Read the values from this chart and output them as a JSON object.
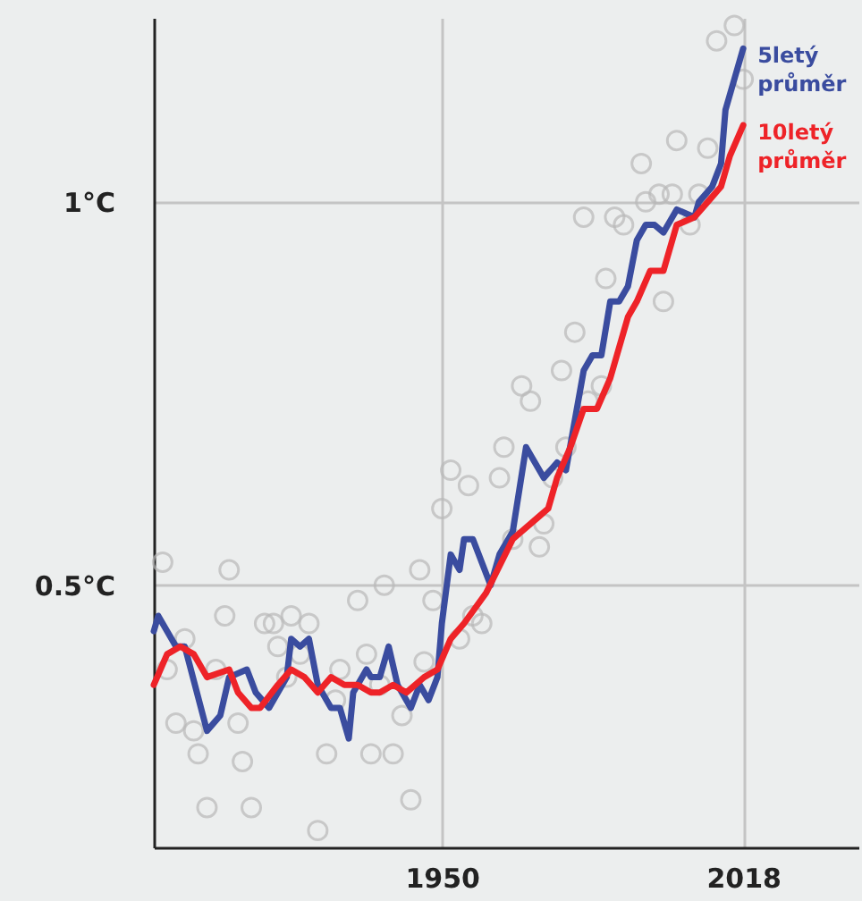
{
  "chart_data": {
    "type": "line",
    "xlim": [
      1885,
      2044
    ],
    "ylim": [
      0.158,
      1.24
    ],
    "xticks": [
      1950,
      2018
    ],
    "yticks": [
      {
        "value": 0.5,
        "label": "0.5°C"
      },
      {
        "value": 1,
        "label": "1°C"
      }
    ],
    "grid": true,
    "legend": false,
    "series": [
      {
        "type": "scatter",
        "marker": "circle",
        "color": "#b9b9b9",
        "x": [
          1887,
          1902,
          1901,
          1892,
          1888,
          1890,
          1894,
          1895,
          1897,
          1899,
          1904,
          1905,
          1907,
          1910,
          1912,
          1913,
          1915,
          1916,
          1918,
          1920,
          1922,
          1924,
          1926,
          1927,
          1931,
          1933,
          1934,
          1936,
          1937,
          1939,
          1941,
          1943,
          1945,
          1946,
          1948,
          1950,
          1952,
          1954,
          1956,
          1957,
          1959,
          1963,
          1964,
          1966,
          1968,
          1970,
          1972,
          1973,
          1975,
          1977,
          1978,
          1980,
          1982,
          1983,
          1986,
          1987,
          1989,
          1991,
          1995,
          1996,
          1999,
          2000,
          2002,
          2003,
          2006,
          2008,
          2010,
          2012,
          2016,
          2018
        ],
        "values": [
          0.53,
          0.52,
          0.46,
          0.43,
          0.39,
          0.32,
          0.31,
          0.28,
          0.21,
          0.39,
          0.32,
          0.27,
          0.21,
          0.45,
          0.45,
          0.42,
          0.38,
          0.46,
          0.41,
          0.45,
          0.18,
          0.28,
          0.35,
          0.39,
          0.48,
          0.41,
          0.28,
          0.37,
          0.5,
          0.28,
          0.33,
          0.22,
          0.52,
          0.4,
          0.48,
          0.6,
          0.65,
          0.43,
          0.63,
          0.46,
          0.45,
          0.64,
          0.68,
          0.56,
          0.76,
          0.74,
          0.55,
          0.58,
          0.64,
          0.78,
          0.68,
          0.83,
          0.98,
          0.74,
          0.76,
          0.9,
          0.98,
          0.97,
          1.05,
          1.0,
          1.01,
          0.87,
          1.01,
          1.08,
          0.97,
          1.01,
          1.07,
          1.21,
          1.23,
          1.16
        ]
      },
      {
        "name": "5letý průměr",
        "color": "#3a4c9f",
        "marker": "none",
        "x": [
          1885,
          1886,
          1890,
          1892,
          1897,
          1900,
          1902,
          1906,
          1908,
          1911,
          1915,
          1916,
          1918,
          1920,
          1922,
          1925,
          1927,
          1929,
          1930,
          1933,
          1934,
          1936,
          1938,
          1940,
          1943,
          1945,
          1947,
          1949,
          1950,
          1952,
          1954,
          1955,
          1957,
          1961,
          1963,
          1966,
          1969,
          1973,
          1976,
          1978,
          1982,
          1984,
          1986,
          1988,
          1990,
          1992,
          1994,
          1996,
          1998,
          2000,
          2003,
          2007,
          2008,
          2011,
          2013,
          2014,
          2016,
          2018
        ],
        "values": [
          0.44,
          0.46,
          0.42,
          0.42,
          0.31,
          0.33,
          0.38,
          0.39,
          0.36,
          0.34,
          0.38,
          0.43,
          0.42,
          0.43,
          0.37,
          0.34,
          0.34,
          0.3,
          0.36,
          0.39,
          0.38,
          0.38,
          0.42,
          0.37,
          0.34,
          0.37,
          0.35,
          0.38,
          0.45,
          0.54,
          0.52,
          0.56,
          0.56,
          0.5,
          0.54,
          0.57,
          0.68,
          0.64,
          0.66,
          0.65,
          0.78,
          0.8,
          0.8,
          0.87,
          0.87,
          0.89,
          0.95,
          0.97,
          0.97,
          0.96,
          0.99,
          0.98,
          1.0,
          1.02,
          1.05,
          1.12,
          1.16,
          1.2
        ]
      },
      {
        "name": "10letý průměr",
        "color": "#ee2328",
        "marker": "none",
        "x": [
          1885,
          1888,
          1891,
          1894,
          1897,
          1902,
          1904,
          1907,
          1909,
          1913,
          1916,
          1919,
          1922,
          1925,
          1928,
          1931,
          1934,
          1936,
          1939,
          1942,
          1946,
          1949,
          1952,
          1955,
          1960,
          1966,
          1972,
          1974,
          1976,
          1979,
          1982,
          1985,
          1988,
          1992,
          1994,
          1997,
          2000,
          2003,
          2007,
          2010,
          2013,
          2015,
          2018
        ],
        "values": [
          0.37,
          0.41,
          0.42,
          0.41,
          0.38,
          0.39,
          0.36,
          0.34,
          0.34,
          0.37,
          0.39,
          0.38,
          0.36,
          0.38,
          0.37,
          0.37,
          0.36,
          0.36,
          0.37,
          0.36,
          0.38,
          0.39,
          0.43,
          0.45,
          0.49,
          0.56,
          0.59,
          0.6,
          0.64,
          0.68,
          0.73,
          0.73,
          0.77,
          0.85,
          0.87,
          0.91,
          0.91,
          0.97,
          0.98,
          1.0,
          1.02,
          1.06,
          1.1
        ]
      }
    ]
  }
}
